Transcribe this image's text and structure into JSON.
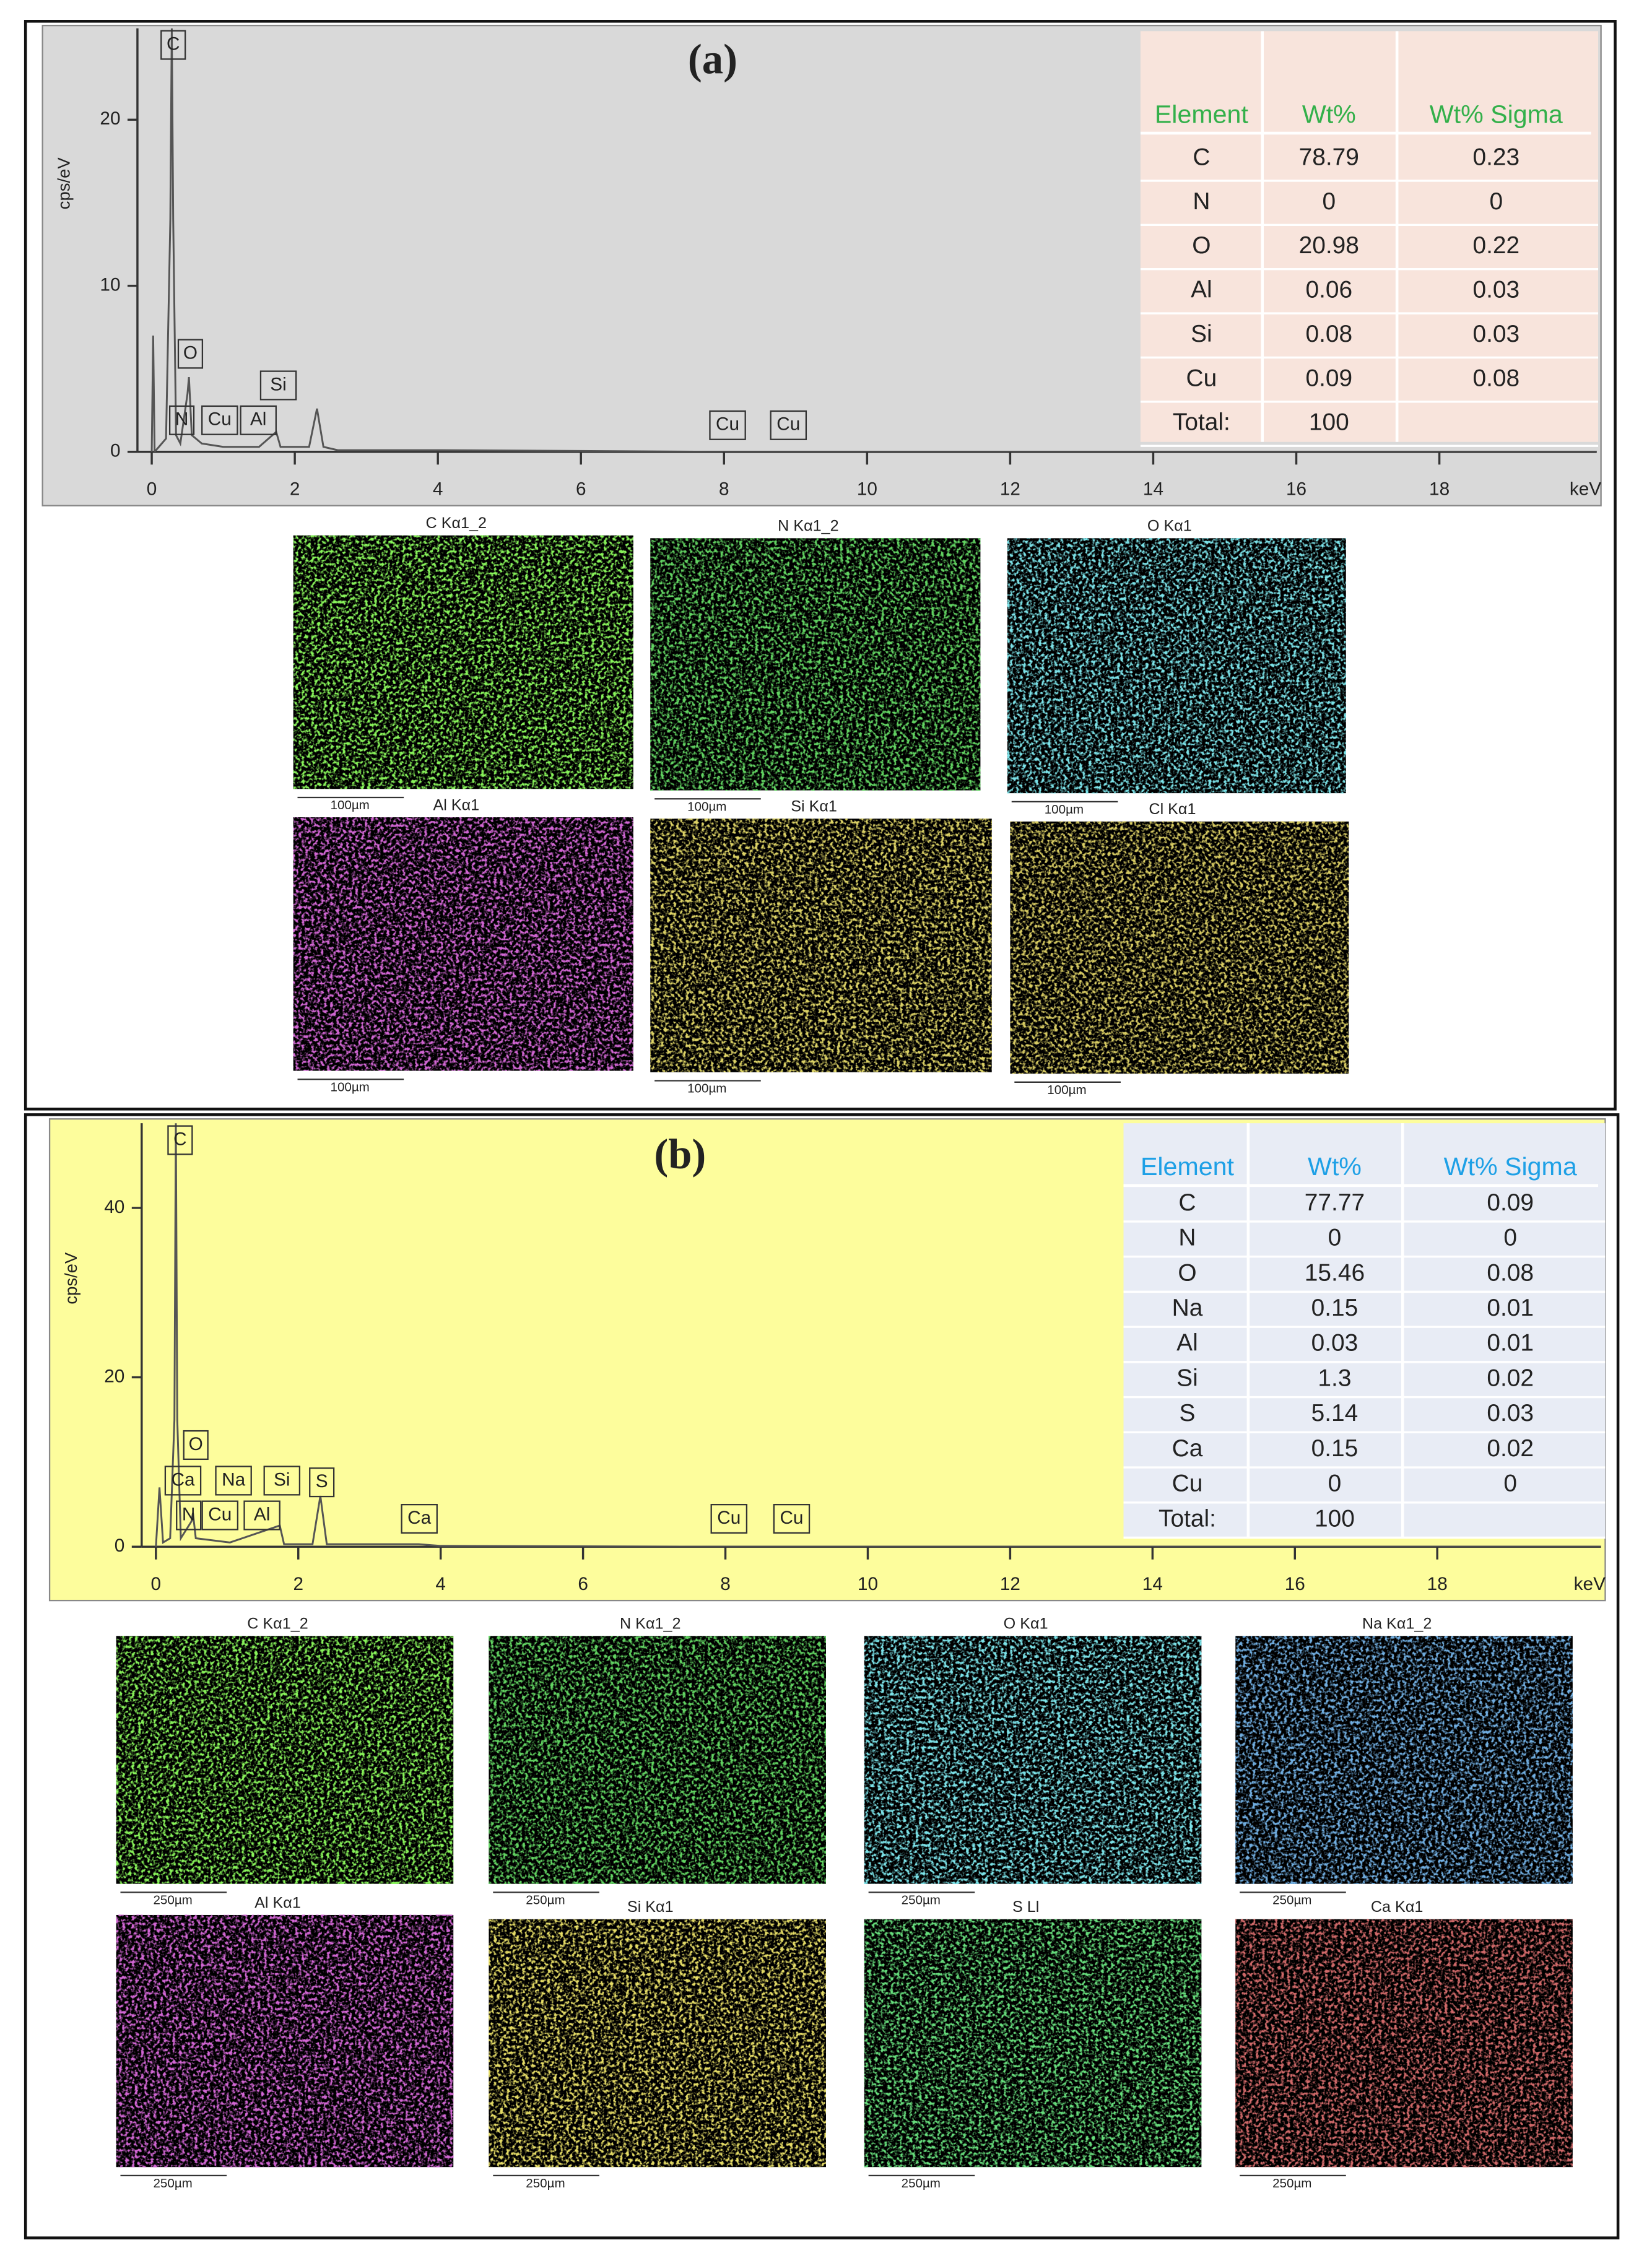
{
  "chart_data": [
    {
      "type": "line",
      "title": "(a)",
      "x_label": "keV",
      "y_label": "cps/eV",
      "xlim": [
        -0.2,
        20.2
      ],
      "ylim": [
        0,
        25.5
      ],
      "xticks": [
        0,
        2,
        4,
        6,
        8,
        10,
        12,
        14,
        16,
        18
      ],
      "yticks": [
        0,
        10,
        20
      ],
      "background": "#d9d9d9",
      "color": "#555555",
      "x": [
        0,
        0.02,
        0.04,
        0.1,
        0.2,
        0.26,
        0.28,
        0.3,
        0.34,
        0.4,
        0.5,
        0.52,
        0.56,
        0.7,
        1.0,
        1.5,
        1.74,
        1.8,
        2.2,
        2.31,
        2.4,
        2.6,
        4,
        8,
        12,
        20.2
      ],
      "values": [
        0,
        7,
        0,
        0.3,
        0.8,
        14,
        25.5,
        14,
        1,
        0.5,
        3.5,
        4.5,
        1,
        0.5,
        0.3,
        0.3,
        1.2,
        0.3,
        0.3,
        2.6,
        0.3,
        0.1,
        0.1,
        0,
        0,
        0
      ],
      "peak_labels": [
        {
          "label": "C",
          "x": 0.3,
          "y": 24.5
        },
        {
          "label": "O",
          "x": 0.54,
          "y": 5.9
        },
        {
          "label": "N",
          "x": 0.42,
          "y": 1.9
        },
        {
          "label": "Cu",
          "x": 0.95,
          "y": 1.9
        },
        {
          "label": "Al",
          "x": 1.49,
          "y": 1.9
        },
        {
          "label": "Si",
          "x": 1.77,
          "y": 4.0
        },
        {
          "label": "Cu",
          "x": 8.05,
          "y": 1.6
        },
        {
          "label": "Cu",
          "x": 8.9,
          "y": 1.6
        }
      ],
      "table": {
        "header": [
          "Element",
          "Wt%",
          "Wt% Sigma"
        ],
        "header_color": "#33b04a",
        "background": "#f8e4dc",
        "rows": [
          [
            "C",
            "78.79",
            "0.23"
          ],
          [
            "N",
            "0",
            "0"
          ],
          [
            "O",
            "20.98",
            "0.22"
          ],
          [
            "Al",
            "0.06",
            "0.03"
          ],
          [
            "Si",
            "0.08",
            "0.03"
          ],
          [
            "Cu",
            "0.09",
            "0.08"
          ],
          [
            "Total:",
            "100",
            ""
          ]
        ]
      },
      "maps": [
        {
          "label": "C Kα1_2",
          "scale": "100µm",
          "color": "#3fe61a"
        },
        {
          "label": "N Kα1_2",
          "scale": "100µm",
          "color": "#1fa81f"
        },
        {
          "label": "O Kα1",
          "scale": "100µm",
          "color": "#33c4d0"
        },
        {
          "label": "Al Kα1",
          "scale": "100µm",
          "color": "#a422a8"
        },
        {
          "label": "Si Kα1",
          "scale": "100µm",
          "color": "#b8a622"
        },
        {
          "label": "Cl Kα1",
          "scale": "100µm",
          "color": "#b09a20"
        }
      ]
    },
    {
      "type": "line",
      "title": "(b)",
      "x_label": "keV",
      "y_label": "cps/eV",
      "xlim": [
        -0.2,
        20.3
      ],
      "ylim": [
        0,
        50
      ],
      "xticks": [
        0,
        2,
        4,
        6,
        8,
        10,
        12,
        14,
        16,
        18
      ],
      "yticks": [
        0,
        20,
        40
      ],
      "background": "#fdfd9c",
      "color": "#555555",
      "x": [
        0,
        0.05,
        0.1,
        0.2,
        0.26,
        0.28,
        0.3,
        0.35,
        0.5,
        0.52,
        0.56,
        1.04,
        1.74,
        1.8,
        2.2,
        2.31,
        2.4,
        3.69,
        4,
        8,
        12,
        20.3
      ],
      "values": [
        0,
        7,
        0.5,
        1,
        15,
        50,
        15,
        1,
        3,
        4,
        1,
        0.5,
        2.5,
        0.3,
        0.3,
        6,
        0.3,
        0.3,
        0.1,
        0,
        0,
        0
      ],
      "peak_labels": [
        {
          "label": "C",
          "x": 0.34,
          "y": 48
        },
        {
          "label": "O",
          "x": 0.56,
          "y": 12
        },
        {
          "label": "Ca",
          "x": 0.38,
          "y": 7.8
        },
        {
          "label": "Na",
          "x": 1.09,
          "y": 7.8
        },
        {
          "label": "Si",
          "x": 1.77,
          "y": 7.8
        },
        {
          "label": "S",
          "x": 2.33,
          "y": 7.6
        },
        {
          "label": "N",
          "x": 0.46,
          "y": 3.7
        },
        {
          "label": "Cu",
          "x": 0.9,
          "y": 3.7
        },
        {
          "label": "Al",
          "x": 1.49,
          "y": 3.7
        },
        {
          "label": "Ca",
          "x": 3.7,
          "y": 3.3
        },
        {
          "label": "Cu",
          "x": 8.05,
          "y": 3.3
        },
        {
          "label": "Cu",
          "x": 8.93,
          "y": 3.3
        }
      ],
      "table": {
        "header": [
          "Element",
          "Wt%",
          "Wt% Sigma"
        ],
        "header_color": "#1ea0e6",
        "background": "#e8ecf5",
        "rows": [
          [
            "C",
            "77.77",
            "0.09"
          ],
          [
            "N",
            "0",
            "0"
          ],
          [
            "O",
            "15.46",
            "0.08"
          ],
          [
            "Na",
            "0.15",
            "0.01"
          ],
          [
            "Al",
            "0.03",
            "0.01"
          ],
          [
            "Si",
            "1.3",
            "0.02"
          ],
          [
            "S",
            "5.14",
            "0.03"
          ],
          [
            "Ca",
            "0.15",
            "0.02"
          ],
          [
            "Cu",
            "0",
            "0"
          ],
          [
            "Total:",
            "100",
            ""
          ]
        ]
      },
      "maps": [
        {
          "label": "C Kα1_2",
          "scale": "250µm",
          "color": "#3fe61a"
        },
        {
          "label": "N Kα1_2",
          "scale": "250µm",
          "color": "#1fa81f"
        },
        {
          "label": "O Kα1",
          "scale": "250µm",
          "color": "#33c4d0"
        },
        {
          "label": "Na Kα1_2",
          "scale": "250µm",
          "color": "#2a6cc0"
        },
        {
          "label": "Al Kα1",
          "scale": "250µm",
          "color": "#a422a8"
        },
        {
          "label": "Si Kα1",
          "scale": "250µm",
          "color": "#c8b622"
        },
        {
          "label": "S Ll",
          "scale": "250µm",
          "color": "#22b833"
        },
        {
          "label": "Ca Kα1",
          "scale": "250µm",
          "color": "#a02424"
        }
      ]
    }
  ]
}
